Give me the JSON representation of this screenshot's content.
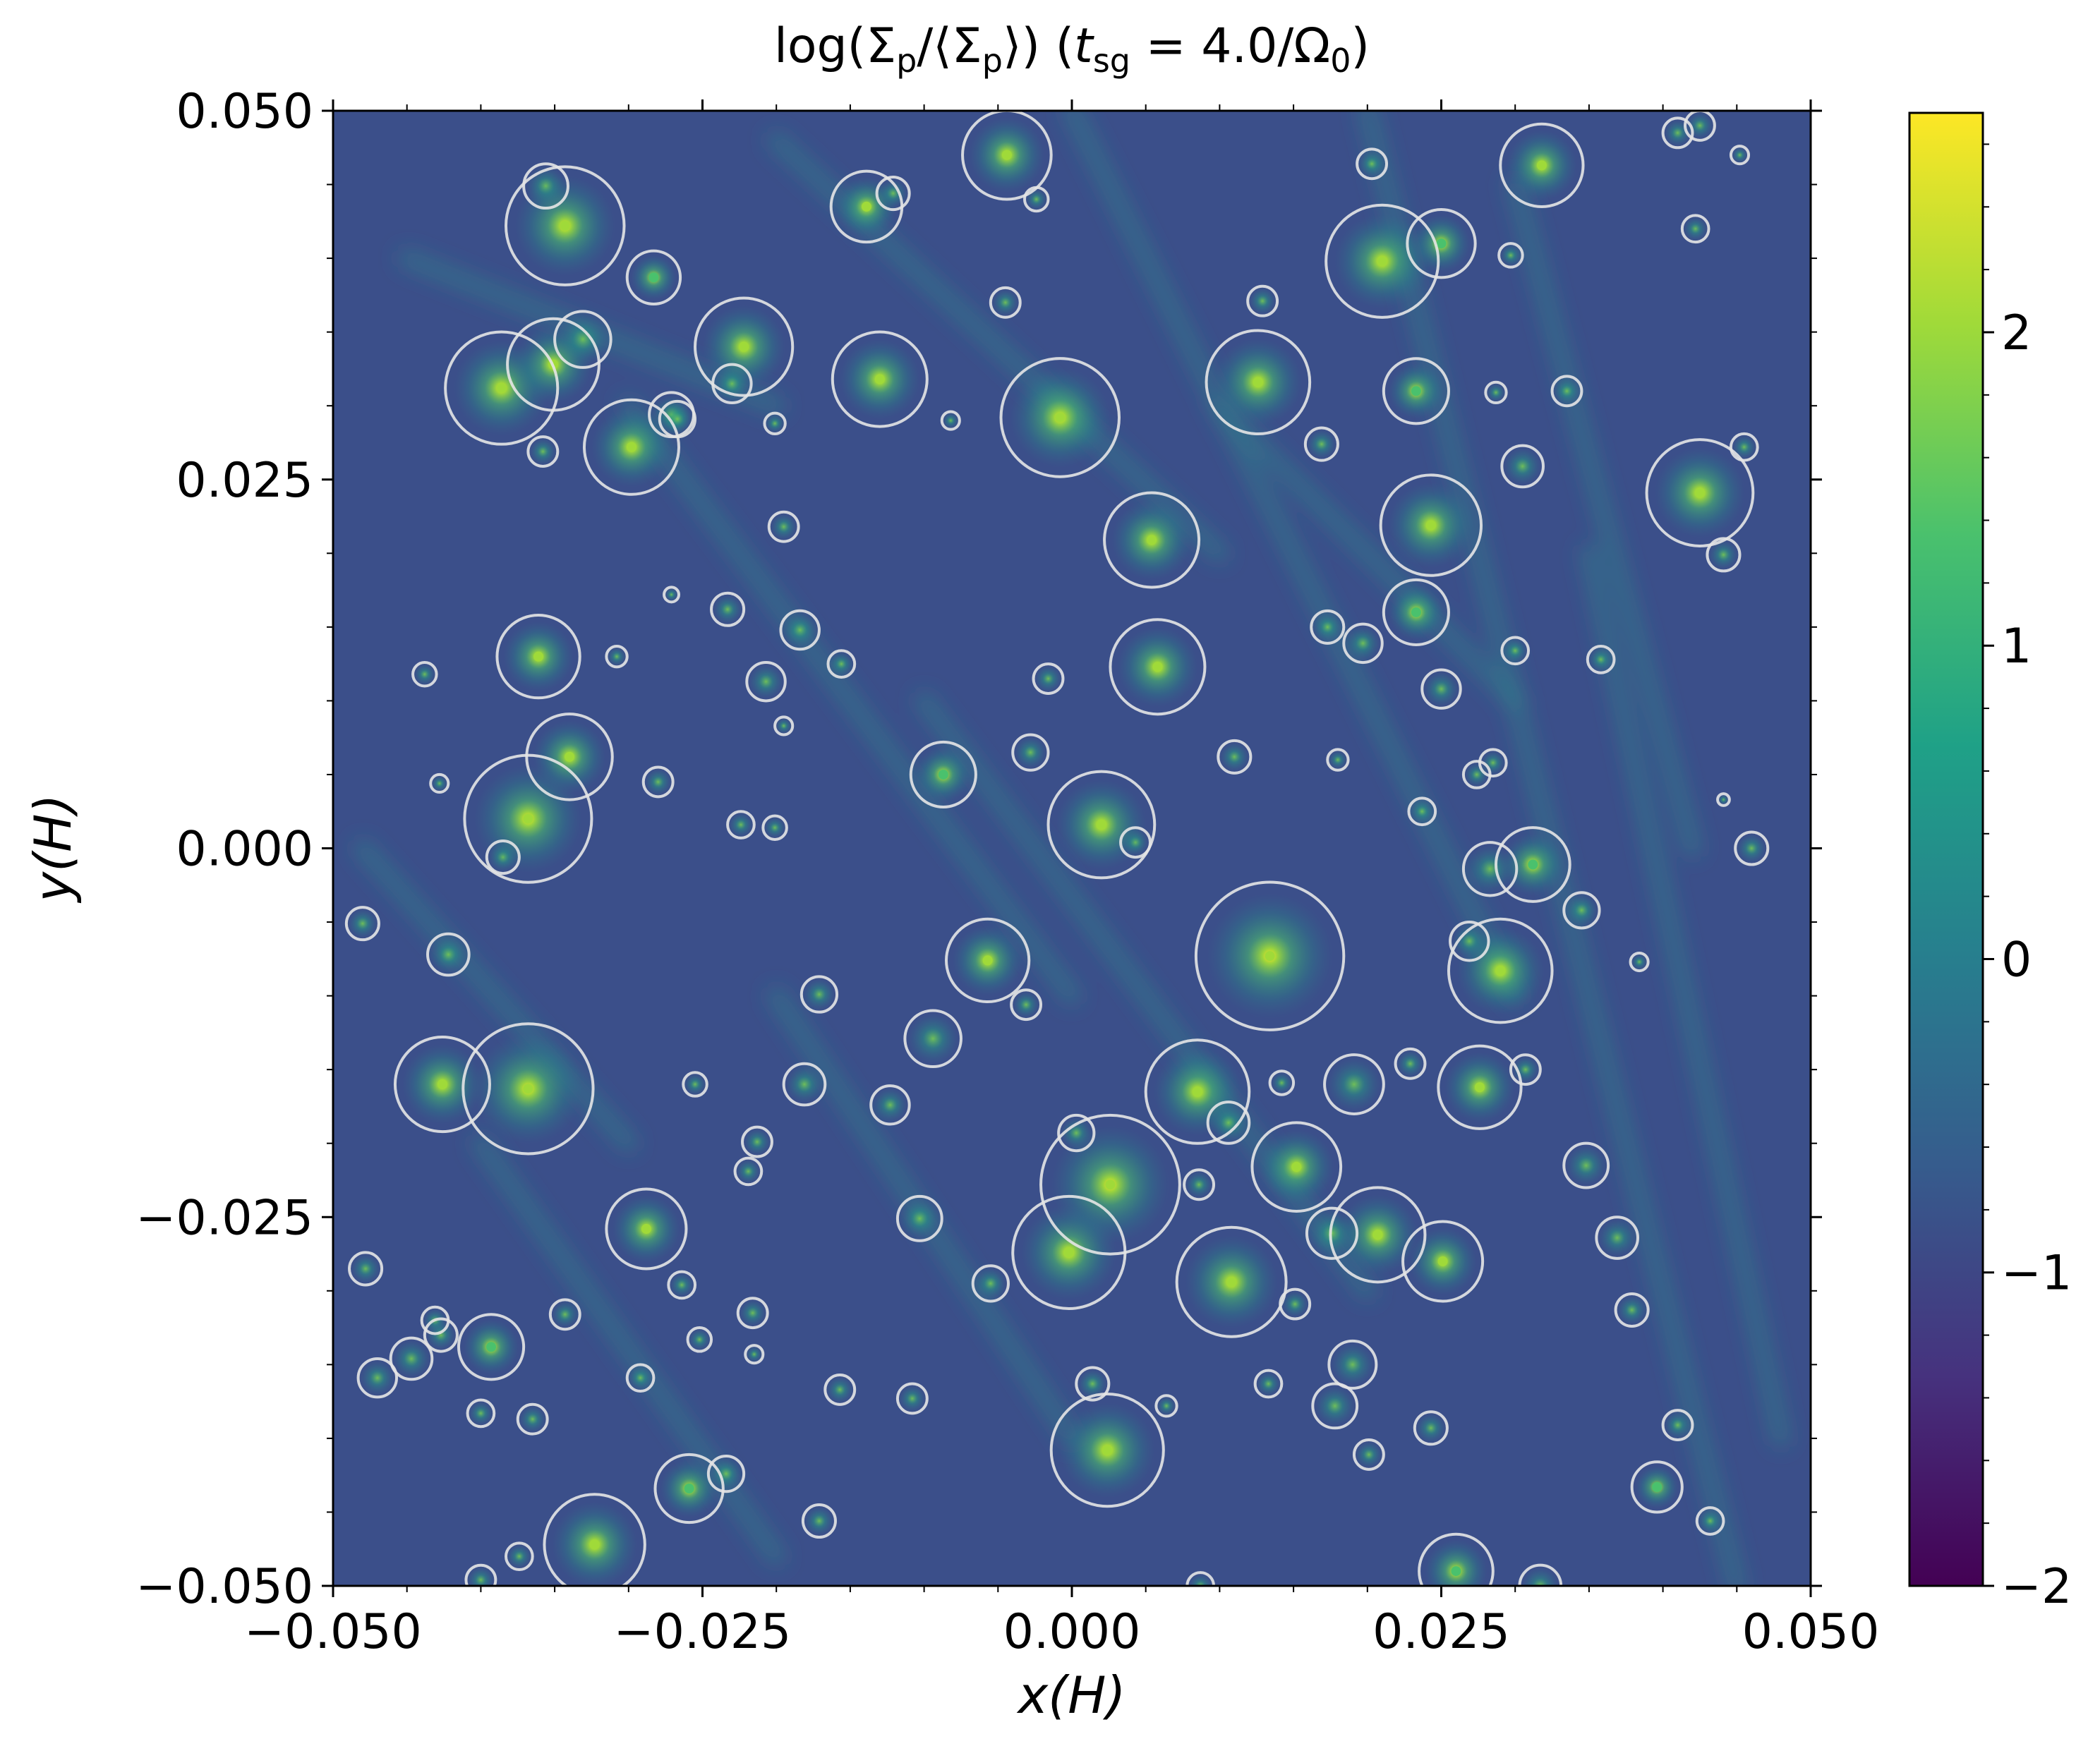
{
  "chart_data": {
    "type": "heatmap",
    "title": "log(Σp/⟨Σp⟩) (tsg = 4.0/Ω0)",
    "title_parts": {
      "lead": "log(Σ",
      "sub1": "p",
      "mid": "/⟨Σ",
      "sub2": "p",
      "close": "⟩) (",
      "t": "t",
      "sub3": "sg",
      "eq": " = 4.0/Ω",
      "sub4": "0",
      "end": ")"
    },
    "xlabel": "x(H)",
    "ylabel": "y(H)",
    "xlim": [
      -0.05,
      0.05
    ],
    "ylim": [
      -0.05,
      0.05
    ],
    "x_ticks": [
      -0.05,
      -0.025,
      0.0,
      0.025,
      0.05
    ],
    "x_tick_labels": [
      "−0.050",
      "−0.025",
      "0.000",
      "0.025",
      "0.050"
    ],
    "y_ticks": [
      -0.05,
      -0.025,
      0.0,
      0.025,
      0.05
    ],
    "y_tick_labels": [
      "−0.050",
      "−0.025",
      "0.000",
      "0.025",
      "0.050"
    ],
    "colorbar": {
      "range": [
        -2,
        2.7
      ],
      "ticks": [
        -2,
        -1,
        0,
        1,
        2
      ],
      "tick_labels": [
        "−2",
        "−1",
        "0",
        "1",
        "2"
      ],
      "colormap": "viridis",
      "colors": [
        "#440154",
        "#46327e",
        "#365c8d",
        "#277f8e",
        "#1fa187",
        "#4ac16d",
        "#a0da39",
        "#fde725"
      ]
    },
    "background_level": -0.9,
    "circle_color": "#e6e6e6",
    "clumps": [
      {
        "x": -0.0343,
        "y": 0.0422,
        "r": 0.004,
        "peak": 2.2
      },
      {
        "x": -0.0386,
        "y": 0.0312,
        "r": 0.0038,
        "peak": 2.1
      },
      {
        "x": -0.0351,
        "y": 0.0328,
        "r": 0.0031,
        "peak": 1.8
      },
      {
        "x": -0.0298,
        "y": 0.0272,
        "r": 0.0032,
        "peak": 2.0
      },
      {
        "x": -0.0222,
        "y": 0.034,
        "r": 0.0033,
        "peak": 2.0
      },
      {
        "x": -0.0283,
        "y": 0.0387,
        "r": 0.0018,
        "peak": 1.2
      },
      {
        "x": -0.013,
        "y": 0.0318,
        "r": 0.0032,
        "peak": 2.0
      },
      {
        "x": -0.0139,
        "y": 0.0435,
        "r": 0.0024,
        "peak": 1.7
      },
      {
        "x": -0.0044,
        "y": 0.047,
        "r": 0.003,
        "peak": 2.0
      },
      {
        "x": -0.0008,
        "y": 0.0292,
        "r": 0.004,
        "peak": 1.8
      },
      {
        "x": 0.0054,
        "y": 0.0209,
        "r": 0.0032,
        "peak": 1.8
      },
      {
        "x": 0.0058,
        "y": 0.0123,
        "r": 0.0032,
        "peak": 2.0
      },
      {
        "x": 0.0126,
        "y": 0.0316,
        "r": 0.0035,
        "peak": 1.9
      },
      {
        "x": 0.021,
        "y": 0.0398,
        "r": 0.0038,
        "peak": 2.2
      },
      {
        "x": 0.025,
        "y": 0.041,
        "r": 0.0023,
        "peak": 1.5
      },
      {
        "x": 0.0233,
        "y": 0.031,
        "r": 0.0022,
        "peak": 1.6
      },
      {
        "x": 0.0243,
        "y": 0.0219,
        "r": 0.0034,
        "peak": 2.0
      },
      {
        "x": 0.0233,
        "y": 0.016,
        "r": 0.0022,
        "peak": 1.5
      },
      {
        "x": 0.0318,
        "y": 0.0463,
        "r": 0.0028,
        "peak": 2.0
      },
      {
        "x": 0.0425,
        "y": 0.0241,
        "r": 0.0036,
        "peak": 2.1
      },
      {
        "x": -0.0361,
        "y": 0.013,
        "r": 0.0028,
        "peak": 1.8
      },
      {
        "x": -0.034,
        "y": 0.0062,
        "r": 0.0029,
        "peak": 1.9
      },
      {
        "x": -0.0368,
        "y": 0.002,
        "r": 0.0043,
        "peak": 2.2
      },
      {
        "x": -0.0087,
        "y": 0.005,
        "r": 0.0022,
        "peak": 1.6
      },
      {
        "x": 0.002,
        "y": 0.0016,
        "r": 0.0036,
        "peak": 2.1
      },
      {
        "x": 0.0134,
        "y": -0.0073,
        "r": 0.005,
        "peak": 2.3
      },
      {
        "x": 0.029,
        "y": -0.0083,
        "r": 0.0035,
        "peak": 1.8
      },
      {
        "x": 0.0312,
        "y": -0.0011,
        "r": 0.0025,
        "peak": 1.6
      },
      {
        "x": -0.0057,
        "y": -0.0076,
        "r": 0.0028,
        "peak": 1.9
      },
      {
        "x": -0.0426,
        "y": -0.016,
        "r": 0.0032,
        "peak": 1.9
      },
      {
        "x": -0.0368,
        "y": -0.0163,
        "r": 0.0044,
        "peak": 2.2
      },
      {
        "x": 0.0085,
        "y": -0.0165,
        "r": 0.0035,
        "peak": 1.9
      },
      {
        "x": 0.0152,
        "y": -0.0216,
        "r": 0.003,
        "peak": 1.9
      },
      {
        "x": 0.0276,
        "y": -0.0162,
        "r": 0.0028,
        "peak": 1.8
      },
      {
        "x": 0.0026,
        "y": -0.0228,
        "r": 0.0047,
        "peak": 2.3
      },
      {
        "x": -0.0002,
        "y": -0.0274,
        "r": 0.0038,
        "peak": 2.0
      },
      {
        "x": 0.0108,
        "y": -0.0294,
        "r": 0.0037,
        "peak": 2.1
      },
      {
        "x": 0.0207,
        "y": -0.0262,
        "r": 0.0032,
        "peak": 1.8
      },
      {
        "x": 0.0251,
        "y": -0.028,
        "r": 0.0027,
        "peak": 1.8
      },
      {
        "x": -0.0288,
        "y": -0.0258,
        "r": 0.0027,
        "peak": 1.7
      },
      {
        "x": 0.0024,
        "y": -0.0408,
        "r": 0.0038,
        "peak": 2.2
      },
      {
        "x": -0.0323,
        "y": -0.0472,
        "r": 0.0034,
        "peak": 2.0
      },
      {
        "x": -0.0259,
        "y": -0.0434,
        "r": 0.0023,
        "peak": 1.6
      },
      {
        "x": 0.026,
        "y": -0.049,
        "r": 0.0025,
        "peak": 1.6
      },
      {
        "x": 0.0396,
        "y": -0.0433,
        "r": 0.0017,
        "peak": 1.5
      },
      {
        "x": -0.0393,
        "y": -0.0338,
        "r": 0.0022,
        "peak": 1.5
      }
    ],
    "minor_clumps": [
      {
        "x": -0.0356,
        "y": 0.0449,
        "r": 0.0015
      },
      {
        "x": -0.0271,
        "y": 0.0294,
        "r": 0.0015
      },
      {
        "x": -0.0267,
        "y": 0.0291,
        "r": 0.0012
      },
      {
        "x": -0.0331,
        "y": 0.0345,
        "r": 0.0019
      },
      {
        "x": -0.023,
        "y": 0.0315,
        "r": 0.0013
      },
      {
        "x": -0.0358,
        "y": 0.0269,
        "r": 0.001
      },
      {
        "x": -0.0195,
        "y": 0.0218,
        "r": 0.001
      },
      {
        "x": -0.0121,
        "y": 0.0444,
        "r": 0.0011
      },
      {
        "x": -0.0045,
        "y": 0.037,
        "r": 0.001
      },
      {
        "x": 0.0129,
        "y": 0.0371,
        "r": 0.001
      },
      {
        "x": 0.0169,
        "y": 0.0274,
        "r": 0.0011
      },
      {
        "x": 0.0203,
        "y": 0.0464,
        "r": 0.001
      },
      {
        "x": 0.0297,
        "y": 0.0402,
        "r": 0.0008
      },
      {
        "x": 0.0287,
        "y": 0.0309,
        "r": 0.0007
      },
      {
        "x": 0.0335,
        "y": 0.031,
        "r": 0.001
      },
      {
        "x": 0.0305,
        "y": 0.0259,
        "r": 0.0014
      },
      {
        "x": 0.041,
        "y": 0.0485,
        "r": 0.001
      },
      {
        "x": 0.0455,
        "y": 0.0272,
        "r": 0.0009
      },
      {
        "x": 0.0441,
        "y": 0.0199,
        "r": 0.0011
      },
      {
        "x": 0.03,
        "y": 0.0134,
        "r": 0.0009
      },
      {
        "x": 0.0358,
        "y": 0.0128,
        "r": 0.0009
      },
      {
        "x": 0.0197,
        "y": 0.0139,
        "r": 0.0013
      },
      {
        "x": 0.025,
        "y": 0.0108,
        "r": 0.0013
      },
      {
        "x": 0.0173,
        "y": 0.015,
        "r": 0.0011
      },
      {
        "x": 0.011,
        "y": 0.0062,
        "r": 0.0011
      },
      {
        "x": 0.018,
        "y": 0.006,
        "r": 0.0007
      },
      {
        "x": 0.0274,
        "y": 0.005,
        "r": 0.0009
      },
      {
        "x": 0.0285,
        "y": 0.0058,
        "r": 0.0009
      },
      {
        "x": 0.0237,
        "y": 0.0025,
        "r": 0.0009
      },
      {
        "x": 0.0283,
        "y": -0.0014,
        "r": 0.0018
      },
      {
        "x": 0.0269,
        "y": -0.0063,
        "r": 0.0013
      },
      {
        "x": 0.0345,
        "y": -0.0042,
        "r": 0.0012
      },
      {
        "x": 0.046,
        "y": 0.0,
        "r": 0.0011
      },
      {
        "x": 0.0307,
        "y": -0.015,
        "r": 0.001
      },
      {
        "x": 0.0191,
        "y": -0.016,
        "r": 0.002
      },
      {
        "x": 0.0229,
        "y": -0.0146,
        "r": 0.001
      },
      {
        "x": 0.0106,
        "y": -0.0186,
        "r": 0.0014
      },
      {
        "x": 0.0142,
        "y": -0.0159,
        "r": 0.0008
      },
      {
        "x": 0.0003,
        "y": -0.0193,
        "r": 0.0012
      },
      {
        "x": 0.0176,
        "y": -0.0261,
        "r": 0.0017
      },
      {
        "x": 0.019,
        "y": -0.035,
        "r": 0.0016
      },
      {
        "x": 0.0178,
        "y": -0.0378,
        "r": 0.0015
      },
      {
        "x": 0.0201,
        "y": -0.0411,
        "r": 0.001
      },
      {
        "x": 0.0243,
        "y": -0.0393,
        "r": 0.0011
      },
      {
        "x": 0.0348,
        "y": -0.0215,
        "r": 0.0015
      },
      {
        "x": 0.0369,
        "y": -0.0264,
        "r": 0.0014
      },
      {
        "x": 0.0379,
        "y": -0.0313,
        "r": 0.0011
      },
      {
        "x": 0.041,
        "y": -0.0391,
        "r": 0.001
      },
      {
        "x": 0.0432,
        "y": -0.0456,
        "r": 0.0009
      },
      {
        "x": -0.0233,
        "y": 0.0162,
        "r": 0.0011
      },
      {
        "x": -0.0184,
        "y": 0.0148,
        "r": 0.0013
      },
      {
        "x": -0.0207,
        "y": 0.0113,
        "r": 0.0013
      },
      {
        "x": -0.0156,
        "y": 0.0125,
        "r": 0.0009
      },
      {
        "x": -0.0016,
        "y": 0.0115,
        "r": 0.001
      },
      {
        "x": -0.0028,
        "y": 0.0065,
        "r": 0.0012
      },
      {
        "x": -0.028,
        "y": 0.0045,
        "r": 0.001
      },
      {
        "x": -0.0428,
        "y": 0.0044,
        "r": 0.0006
      },
      {
        "x": -0.048,
        "y": -0.0051,
        "r": 0.0011
      },
      {
        "x": -0.0422,
        "y": -0.0072,
        "r": 0.0014
      },
      {
        "x": -0.0171,
        "y": -0.0099,
        "r": 0.0012
      },
      {
        "x": -0.0094,
        "y": -0.0129,
        "r": 0.0019
      },
      {
        "x": -0.0181,
        "y": -0.016,
        "r": 0.0014
      },
      {
        "x": -0.0123,
        "y": -0.0174,
        "r": 0.0013
      },
      {
        "x": -0.0031,
        "y": -0.0106,
        "r": 0.001
      },
      {
        "x": -0.0255,
        "y": -0.016,
        "r": 0.0008
      },
      {
        "x": -0.0213,
        "y": -0.0199,
        "r": 0.001
      },
      {
        "x": -0.0219,
        "y": -0.0219,
        "r": 0.0009
      },
      {
        "x": -0.0103,
        "y": -0.0251,
        "r": 0.0015
      },
      {
        "x": -0.0055,
        "y": -0.0295,
        "r": 0.0012
      },
      {
        "x": -0.0264,
        "y": -0.0296,
        "r": 0.0009
      },
      {
        "x": -0.0216,
        "y": -0.0315,
        "r": 0.001
      },
      {
        "x": -0.0343,
        "y": -0.0316,
        "r": 0.001
      },
      {
        "x": -0.0427,
        "y": -0.033,
        "r": 0.0011
      },
      {
        "x": -0.0447,
        "y": -0.0346,
        "r": 0.0014
      },
      {
        "x": -0.047,
        "y": -0.0359,
        "r": 0.0013
      },
      {
        "x": -0.0431,
        "y": -0.032,
        "r": 0.0009
      },
      {
        "x": -0.04,
        "y": -0.0383,
        "r": 0.0009
      },
      {
        "x": -0.0365,
        "y": -0.0387,
        "r": 0.001
      },
      {
        "x": -0.0292,
        "y": -0.0359,
        "r": 0.0009
      },
      {
        "x": -0.0252,
        "y": -0.0333,
        "r": 0.0008
      },
      {
        "x": -0.0215,
        "y": -0.0343,
        "r": 0.0006
      },
      {
        "x": -0.0157,
        "y": -0.0367,
        "r": 0.001
      },
      {
        "x": -0.0108,
        "y": -0.0373,
        "r": 0.001
      },
      {
        "x": 0.0014,
        "y": -0.0363,
        "r": 0.0011
      },
      {
        "x": 0.0064,
        "y": -0.0378,
        "r": 0.0007
      },
      {
        "x": 0.0133,
        "y": -0.0363,
        "r": 0.0009
      },
      {
        "x": 0.0151,
        "y": -0.0309,
        "r": 0.001
      },
      {
        "x": 0.0086,
        "y": -0.0228,
        "r": 0.001
      },
      {
        "x": -0.0171,
        "y": -0.0456,
        "r": 0.0011
      },
      {
        "x": -0.0234,
        "y": -0.0424,
        "r": 0.0012
      },
      {
        "x": -0.04,
        "y": -0.0496,
        "r": 0.001
      },
      {
        "x": -0.0374,
        "y": -0.048,
        "r": 0.0009
      },
      {
        "x": -0.0478,
        "y": -0.0285,
        "r": 0.0011
      },
      {
        "x": 0.0087,
        "y": -0.05,
        "r": 0.0009
      },
      {
        "x": 0.0317,
        "y": -0.05,
        "r": 0.0014
      },
      {
        "x": 0.0043,
        "y": 0.0004,
        "r": 0.001
      },
      {
        "x": -0.0385,
        "y": -0.0006,
        "r": 0.0011
      },
      {
        "x": -0.0308,
        "y": 0.013,
        "r": 0.0007
      },
      {
        "x": -0.0438,
        "y": 0.0118,
        "r": 0.0008
      },
      {
        "x": -0.0224,
        "y": 0.0016,
        "r": 0.0009
      },
      {
        "x": -0.0201,
        "y": 0.0014,
        "r": 0.0008
      },
      {
        "x": -0.0082,
        "y": 0.029,
        "r": 0.0006
      },
      {
        "x": -0.0201,
        "y": 0.0288,
        "r": 0.0007
      },
      {
        "x": 0.0422,
        "y": 0.042,
        "r": 0.0009
      },
      {
        "x": 0.0452,
        "y": 0.047,
        "r": 0.0006
      },
      {
        "x": 0.0441,
        "y": 0.0033,
        "r": 0.0004
      },
      {
        "x": 0.0384,
        "y": -0.0077,
        "r": 0.0006
      },
      {
        "x": -0.0024,
        "y": 0.044,
        "r": 0.0008
      },
      {
        "x": 0.0425,
        "y": 0.049,
        "r": 0.001
      },
      {
        "x": -0.0195,
        "y": 0.0083,
        "r": 0.0006
      },
      {
        "x": -0.0271,
        "y": 0.0172,
        "r": 0.0005
      }
    ]
  }
}
